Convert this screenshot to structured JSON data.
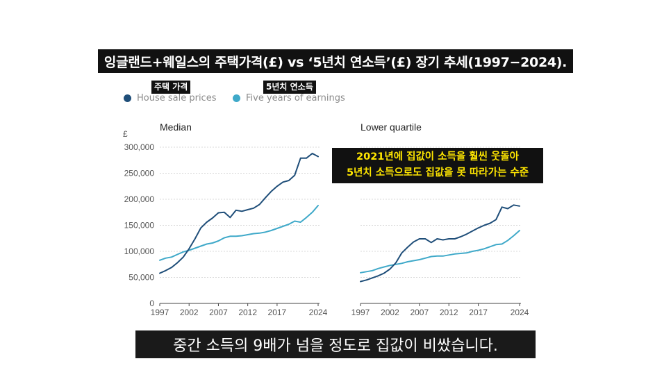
{
  "title": "잉글랜드+웨일스의 주택가격(£) vs ‘5년치 연소득’(£) 장기 추세(1997−2024).",
  "legend": {
    "house": {
      "label": "House sale prices",
      "tag": "주택 가격",
      "color": "#1f4e79"
    },
    "earnings": {
      "label": "Five years of earnings",
      "tag": "5년치 연소득",
      "color": "#3fa9c9"
    }
  },
  "callout": {
    "line1": "2021년에 집값이 소득을 훨씬 웃돌아",
    "line2": "5년치 소득으로도 집값을 못 따라가는 수준"
  },
  "caption": "중간 소득의 9배가 넘을 정도로 집값이 비쌌습니다.",
  "chart_data": [
    {
      "type": "line",
      "title": "Median",
      "ylabel": "£",
      "ylim": [
        0,
        300000
      ],
      "yticks": [
        "0",
        "50,000",
        "100,000",
        "150,000",
        "200,000",
        "250,000",
        "300,000"
      ],
      "xticks": [
        "1997",
        "2002",
        "2007",
        "2012",
        "2017",
        "2024"
      ],
      "x": [
        1997,
        1998,
        1999,
        2000,
        2001,
        2002,
        2003,
        2004,
        2005,
        2006,
        2007,
        2008,
        2009,
        2010,
        2011,
        2012,
        2013,
        2014,
        2015,
        2016,
        2017,
        2018,
        2019,
        2020,
        2021,
        2022,
        2023,
        2024
      ],
      "series": [
        {
          "name": "House sale prices",
          "values": [
            58000,
            63000,
            69000,
            78000,
            89000,
            105000,
            124000,
            145000,
            156000,
            164000,
            174000,
            175000,
            165000,
            179000,
            177000,
            180000,
            183000,
            190000,
            203000,
            215000,
            225000,
            233000,
            236000,
            246000,
            279000,
            279000,
            288000,
            282000
          ]
        },
        {
          "name": "Five years of earnings",
          "values": [
            83000,
            87000,
            89000,
            94000,
            99000,
            102000,
            106000,
            110000,
            114000,
            116000,
            120000,
            126000,
            129000,
            129000,
            130000,
            132000,
            134000,
            135000,
            137000,
            140000,
            144000,
            148000,
            152000,
            158000,
            156000,
            165000,
            175000,
            188000
          ]
        }
      ]
    },
    {
      "type": "line",
      "title": "Lower quartile",
      "ylim": [
        0,
        300000
      ],
      "xticks": [
        "1997",
        "2002",
        "2007",
        "2012",
        "2017",
        "2024"
      ],
      "x": [
        1997,
        1998,
        1999,
        2000,
        2001,
        2002,
        2003,
        2004,
        2005,
        2006,
        2007,
        2008,
        2009,
        2010,
        2011,
        2012,
        2013,
        2014,
        2015,
        2016,
        2017,
        2018,
        2019,
        2020,
        2021,
        2022,
        2023,
        2024
      ],
      "series": [
        {
          "name": "House sale prices",
          "values": [
            42000,
            45000,
            49000,
            53000,
            58000,
            66000,
            78000,
            97000,
            108000,
            118000,
            124000,
            124000,
            117000,
            124000,
            122000,
            124000,
            124000,
            128000,
            133000,
            139000,
            145000,
            150000,
            154000,
            161000,
            185000,
            182000,
            189000,
            187000
          ]
        },
        {
          "name": "Five years of earnings",
          "values": [
            59000,
            61000,
            63000,
            67000,
            70000,
            73000,
            75000,
            77000,
            80000,
            82000,
            84000,
            87000,
            90000,
            91000,
            91000,
            93000,
            95000,
            96000,
            97000,
            100000,
            102000,
            105000,
            109000,
            113000,
            114000,
            121000,
            130000,
            140000
          ]
        }
      ]
    }
  ]
}
